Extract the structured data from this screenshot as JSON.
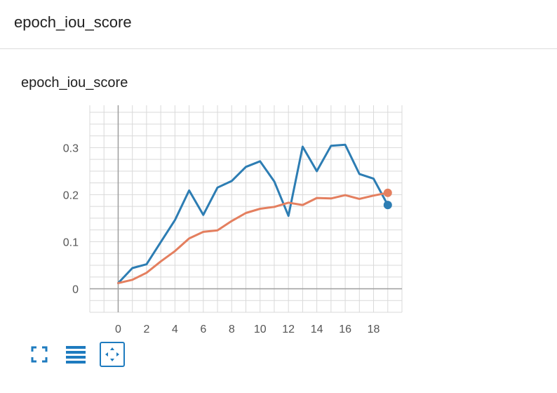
{
  "section": {
    "title": "epoch_iou_score"
  },
  "card": {
    "title": "epoch_iou_score"
  },
  "toolbar": {
    "icons": [
      "fit-domain-icon",
      "toggle-log-scale-icon",
      "expand-chart-icon"
    ],
    "accent_color": "#1e7bbf"
  },
  "colors": {
    "series_blue": "#2d7db3",
    "series_orange": "#e47f5f",
    "grid": "#d9d9d9",
    "axis_zero": "#9e9e9e"
  },
  "chart_data": {
    "type": "line",
    "title": "",
    "xlabel": "",
    "ylabel": "",
    "xlim": [
      -2,
      20
    ],
    "ylim": [
      -0.05,
      0.39
    ],
    "grid": true,
    "x_ticks": [
      0,
      2,
      4,
      6,
      8,
      10,
      12,
      14,
      16,
      18
    ],
    "y_ticks": [
      0,
      0.1,
      0.2,
      0.3
    ],
    "x_tick_labels": [
      "0",
      "2",
      "4",
      "6",
      "8",
      "10",
      "12",
      "14",
      "16",
      "18"
    ],
    "y_tick_labels": [
      "0",
      "0.1",
      "0.2",
      "0.3"
    ],
    "x": [
      0,
      1,
      2,
      3,
      4,
      5,
      6,
      7,
      8,
      9,
      10,
      11,
      12,
      13,
      14,
      15,
      16,
      17,
      18,
      19
    ],
    "series": [
      {
        "color": "#2d7db3",
        "values": [
          0.012,
          0.044,
          0.052,
          0.099,
          0.146,
          0.209,
          0.157,
          0.215,
          0.229,
          0.259,
          0.271,
          0.228,
          0.155,
          0.302,
          0.25,
          0.304,
          0.306,
          0.244,
          0.234,
          0.178
        ]
      },
      {
        "color": "#e47f5f",
        "values": [
          0.012,
          0.019,
          0.034,
          0.058,
          0.08,
          0.107,
          0.121,
          0.124,
          0.144,
          0.161,
          0.17,
          0.174,
          0.183,
          0.178,
          0.193,
          0.192,
          0.199,
          0.191,
          0.198,
          0.204
        ]
      }
    ]
  }
}
